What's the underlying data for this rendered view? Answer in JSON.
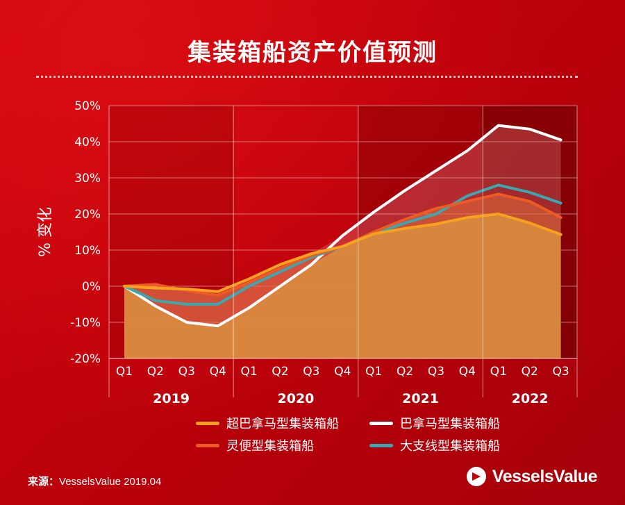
{
  "title": "集装箱船资产价值预测",
  "source_label": "来源：",
  "source_text": "VesselsValue 2019.04",
  "brand": "VesselsValue",
  "colors": {
    "background": "#c4000c",
    "super_panamax": "#f6a21e",
    "panamax": "#ffffff",
    "handy": "#ee5a24",
    "feeder": "#3aa8b0",
    "fill": "#d98a3e"
  },
  "chart_data": {
    "type": "line",
    "ylabel": "% 变化",
    "ylim": [
      -20,
      50
    ],
    "yticks": [
      "50%",
      "40%",
      "30%",
      "20%",
      "10%",
      "0%",
      "-10%",
      "-20%"
    ],
    "ytick_values": [
      50,
      40,
      30,
      20,
      10,
      0,
      -10,
      -20
    ],
    "categories": [
      "Q1",
      "Q2",
      "Q3",
      "Q4",
      "Q1",
      "Q2",
      "Q3",
      "Q4",
      "Q1",
      "Q2",
      "Q3",
      "Q4",
      "Q1",
      "Q2",
      "Q3"
    ],
    "years": [
      {
        "label": "2019",
        "quarters": 4
      },
      {
        "label": "2020",
        "quarters": 4
      },
      {
        "label": "2021",
        "quarters": 4
      },
      {
        "label": "2022",
        "quarters": 3
      }
    ],
    "grid": true,
    "legend_position": "bottom",
    "series": [
      {
        "name": "超巴拿马型集装箱船",
        "key": "super_panamax",
        "values": [
          0,
          -0.5,
          -0.8,
          -1.5,
          2,
          6,
          9,
          11,
          14.5,
          16,
          17.2,
          19,
          20,
          17.5,
          14.3
        ]
      },
      {
        "name": "巴拿马型集装箱船",
        "key": "panamax",
        "values": [
          0,
          -5.5,
          -10,
          -11,
          -6,
          0,
          6,
          14,
          20.5,
          26.5,
          32,
          37.5,
          44.5,
          43.5,
          40.5
        ]
      },
      {
        "name": "灵便型集装箱船",
        "key": "handy",
        "values": [
          0,
          0.5,
          -1.2,
          -2.5,
          1,
          5,
          8.5,
          11,
          15,
          18.5,
          21.5,
          23.5,
          25.5,
          23.5,
          19
        ]
      },
      {
        "name": "大支线型集装箱船",
        "key": "feeder",
        "values": [
          0,
          -4,
          -5,
          -5,
          0,
          4,
          8,
          11,
          14.5,
          17.5,
          20,
          25,
          28,
          26,
          23
        ]
      }
    ],
    "legend_order": [
      "super_panamax",
      "panamax",
      "handy",
      "feeder"
    ]
  }
}
